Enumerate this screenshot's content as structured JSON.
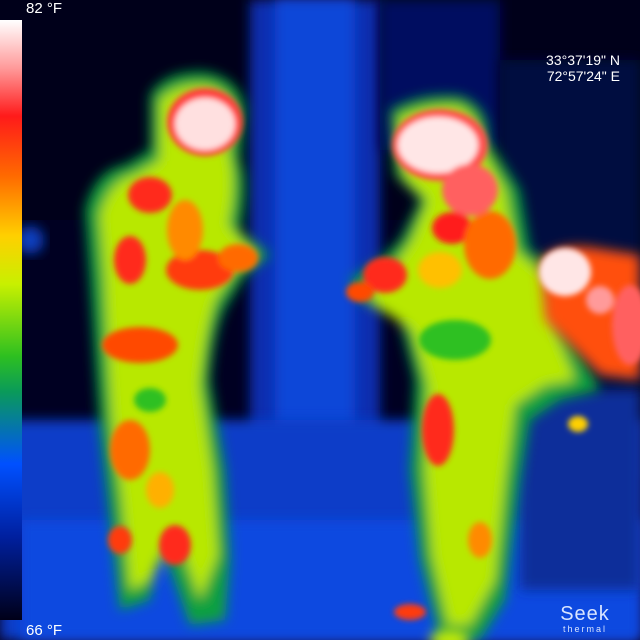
{
  "overlay": {
    "temp_max": "82 °F",
    "temp_min": "66 °F",
    "gps_latitude": "33°37'19\" N",
    "gps_longitude": "72°57'24\" E"
  },
  "brand": {
    "name": "Seek",
    "tagline": "thermal"
  },
  "palette": {
    "name": "spectrum",
    "colors": [
      "#ffffff",
      "#ff1a1a",
      "#ff6a00",
      "#ffd000",
      "#2ec020",
      "#0050ff",
      "#000018"
    ]
  }
}
